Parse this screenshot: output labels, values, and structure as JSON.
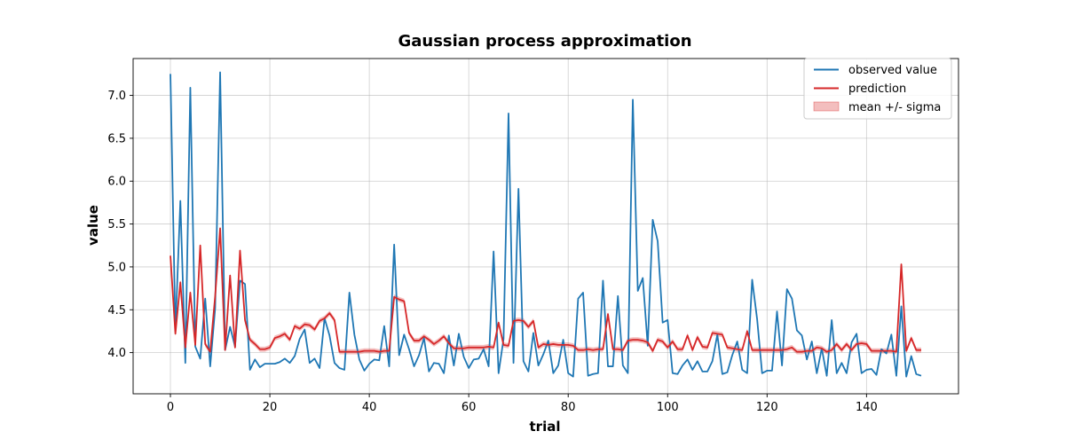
{
  "chart_data": {
    "type": "line",
    "title": "Gaussian process approximation",
    "xlabel": "trial",
    "ylabel": "value",
    "xlim": [
      -7.5,
      158.5
    ],
    "ylim": [
      3.52,
      7.43
    ],
    "xticks": [
      0,
      20,
      40,
      60,
      80,
      100,
      120,
      140
    ],
    "yticks": [
      4.0,
      4.5,
      5.0,
      5.5,
      6.0,
      6.5,
      7.0
    ],
    "ytick_labels": [
      "4.0",
      "4.5",
      "5.0",
      "5.5",
      "6.0",
      "6.5",
      "7.0"
    ],
    "grid": true,
    "legend": {
      "position": "top-right",
      "entries": [
        "observed value",
        "prediction",
        "mean +/- sigma"
      ]
    },
    "colors": {
      "observed": "#1f77b4",
      "prediction": "#d62728",
      "band": "#d62728"
    },
    "sigma": 0.03,
    "series": [
      {
        "name": "observed value",
        "x": [
          0,
          1,
          2,
          3,
          4,
          5,
          6,
          7,
          8,
          9,
          10,
          11,
          12,
          13,
          14,
          15,
          16,
          17,
          18,
          19,
          20,
          21,
          22,
          23,
          24,
          25,
          26,
          27,
          28,
          29,
          30,
          31,
          32,
          33,
          34,
          35,
          36,
          37,
          38,
          39,
          40,
          41,
          42,
          43,
          44,
          45,
          46,
          47,
          48,
          49,
          50,
          51,
          52,
          53,
          54,
          55,
          56,
          57,
          58,
          59,
          60,
          61,
          62,
          63,
          64,
          65,
          66,
          67,
          68,
          69,
          70,
          71,
          72,
          73,
          74,
          75,
          76,
          77,
          78,
          79,
          80,
          81,
          82,
          83,
          84,
          85,
          86,
          87,
          88,
          89,
          90,
          91,
          92,
          93,
          94,
          95,
          96,
          97,
          98,
          99,
          100,
          101,
          102,
          103,
          104,
          105,
          106,
          107,
          108,
          109,
          110,
          111,
          112,
          113,
          114,
          115,
          116,
          117,
          118,
          119,
          120,
          121,
          122,
          123,
          124,
          125,
          126,
          127,
          128,
          129,
          130,
          131,
          132,
          133,
          134,
          135,
          136,
          137,
          138,
          139,
          140,
          141,
          142,
          143,
          144,
          145,
          146,
          147,
          148,
          149,
          150,
          151
        ],
        "values": [
          7.25,
          4.25,
          5.77,
          3.88,
          7.09,
          4.07,
          3.93,
          4.63,
          3.84,
          4.52,
          7.27,
          4.03,
          4.3,
          4.07,
          4.84,
          4.8,
          3.8,
          3.92,
          3.83,
          3.87,
          3.87,
          3.87,
          3.89,
          3.93,
          3.88,
          3.96,
          4.16,
          4.27,
          3.88,
          3.93,
          3.82,
          4.4,
          4.2,
          3.88,
          3.82,
          3.8,
          4.7,
          4.21,
          3.92,
          3.79,
          3.87,
          3.92,
          3.91,
          4.31,
          3.84,
          5.26,
          3.97,
          4.21,
          4.04,
          3.84,
          3.97,
          4.17,
          3.78,
          3.88,
          3.87,
          3.76,
          4.2,
          3.85,
          4.22,
          3.95,
          3.82,
          3.92,
          3.93,
          4.04,
          3.84,
          5.18,
          3.76,
          4.16,
          6.79,
          3.88,
          5.91,
          3.9,
          3.78,
          4.23,
          3.85,
          3.98,
          4.14,
          3.76,
          3.85,
          4.15,
          3.76,
          3.72,
          4.63,
          4.7,
          3.73,
          3.75,
          3.76,
          4.84,
          3.84,
          3.84,
          4.66,
          3.85,
          3.76,
          6.95,
          4.72,
          4.87,
          4.08,
          5.55,
          5.3,
          4.35,
          4.38,
          3.76,
          3.75,
          3.85,
          3.92,
          3.8,
          3.9,
          3.78,
          3.78,
          3.9,
          4.21,
          3.75,
          3.77,
          3.97,
          4.13,
          3.8,
          3.76,
          4.85,
          4.39,
          3.76,
          3.79,
          3.79,
          4.48,
          3.85,
          4.74,
          4.63,
          4.26,
          4.2,
          3.92,
          4.13,
          3.76,
          4.05,
          3.73,
          4.38,
          3.76,
          3.88,
          3.76,
          4.12,
          4.22,
          3.76,
          3.8,
          3.81,
          3.74,
          4.04,
          3.99,
          4.21,
          3.73,
          4.54,
          3.72,
          3.96,
          3.75,
          3.73
        ]
      },
      {
        "name": "prediction",
        "x": [
          0,
          1,
          2,
          3,
          4,
          5,
          6,
          7,
          8,
          9,
          10,
          11,
          12,
          13,
          14,
          15,
          16,
          17,
          18,
          19,
          20,
          21,
          22,
          23,
          24,
          25,
          26,
          27,
          28,
          29,
          30,
          31,
          32,
          33,
          34,
          35,
          36,
          37,
          38,
          39,
          40,
          41,
          42,
          43,
          44,
          45,
          46,
          47,
          48,
          49,
          50,
          51,
          52,
          53,
          54,
          55,
          56,
          57,
          58,
          59,
          60,
          61,
          62,
          63,
          64,
          65,
          66,
          67,
          68,
          69,
          70,
          71,
          72,
          73,
          74,
          75,
          76,
          77,
          78,
          79,
          80,
          81,
          82,
          83,
          84,
          85,
          86,
          87,
          88,
          89,
          90,
          91,
          92,
          93,
          94,
          95,
          96,
          97,
          98,
          99,
          100,
          101,
          102,
          103,
          104,
          105,
          106,
          107,
          108,
          109,
          110,
          111,
          112,
          113,
          114,
          115,
          116,
          117,
          118,
          119,
          120,
          121,
          122,
          123,
          124,
          125,
          126,
          127,
          128,
          129,
          130,
          131,
          132,
          133,
          134,
          135,
          136,
          137,
          138,
          139,
          140,
          141,
          142,
          143,
          144,
          145,
          146,
          147,
          148,
          149,
          150,
          151
        ],
        "values": [
          5.13,
          4.22,
          4.82,
          4.06,
          4.7,
          4.09,
          5.25,
          4.1,
          4.01,
          4.66,
          5.45,
          4.03,
          4.9,
          4.06,
          5.19,
          4.38,
          4.15,
          4.1,
          4.04,
          4.04,
          4.06,
          4.17,
          4.19,
          4.22,
          4.15,
          4.31,
          4.28,
          4.33,
          4.32,
          4.27,
          4.37,
          4.4,
          4.46,
          4.38,
          4.01,
          4.01,
          4.01,
          4.01,
          4.01,
          4.02,
          4.02,
          4.02,
          4.01,
          4.02,
          4.02,
          4.65,
          4.62,
          4.6,
          4.23,
          4.14,
          4.14,
          4.19,
          4.15,
          4.1,
          4.14,
          4.19,
          4.11,
          4.05,
          4.05,
          4.05,
          4.06,
          4.06,
          4.06,
          4.06,
          4.07,
          4.06,
          4.35,
          4.09,
          4.08,
          4.37,
          4.38,
          4.37,
          4.3,
          4.37,
          4.06,
          4.1,
          4.09,
          4.1,
          4.09,
          4.09,
          4.09,
          4.08,
          4.03,
          4.03,
          4.04,
          4.03,
          4.04,
          4.04,
          4.45,
          4.04,
          4.04,
          4.03,
          4.14,
          4.15,
          4.15,
          4.14,
          4.12,
          4.02,
          4.15,
          4.13,
          4.06,
          4.13,
          4.04,
          4.04,
          4.2,
          4.03,
          4.18,
          4.07,
          4.06,
          4.23,
          4.22,
          4.21,
          4.06,
          4.05,
          4.04,
          4.03,
          4.25,
          4.03,
          4.03,
          4.03,
          4.03,
          4.03,
          4.03,
          4.03,
          4.04,
          4.06,
          4.01,
          4.01,
          4.02,
          4.02,
          4.06,
          4.05,
          4.01,
          4.03,
          4.1,
          4.03,
          4.1,
          4.03,
          4.1,
          4.11,
          4.1,
          4.02,
          4.02,
          4.02,
          4.02,
          4.02,
          4.01,
          5.03,
          4.02,
          4.17,
          4.03,
          4.03
        ]
      }
    ]
  }
}
